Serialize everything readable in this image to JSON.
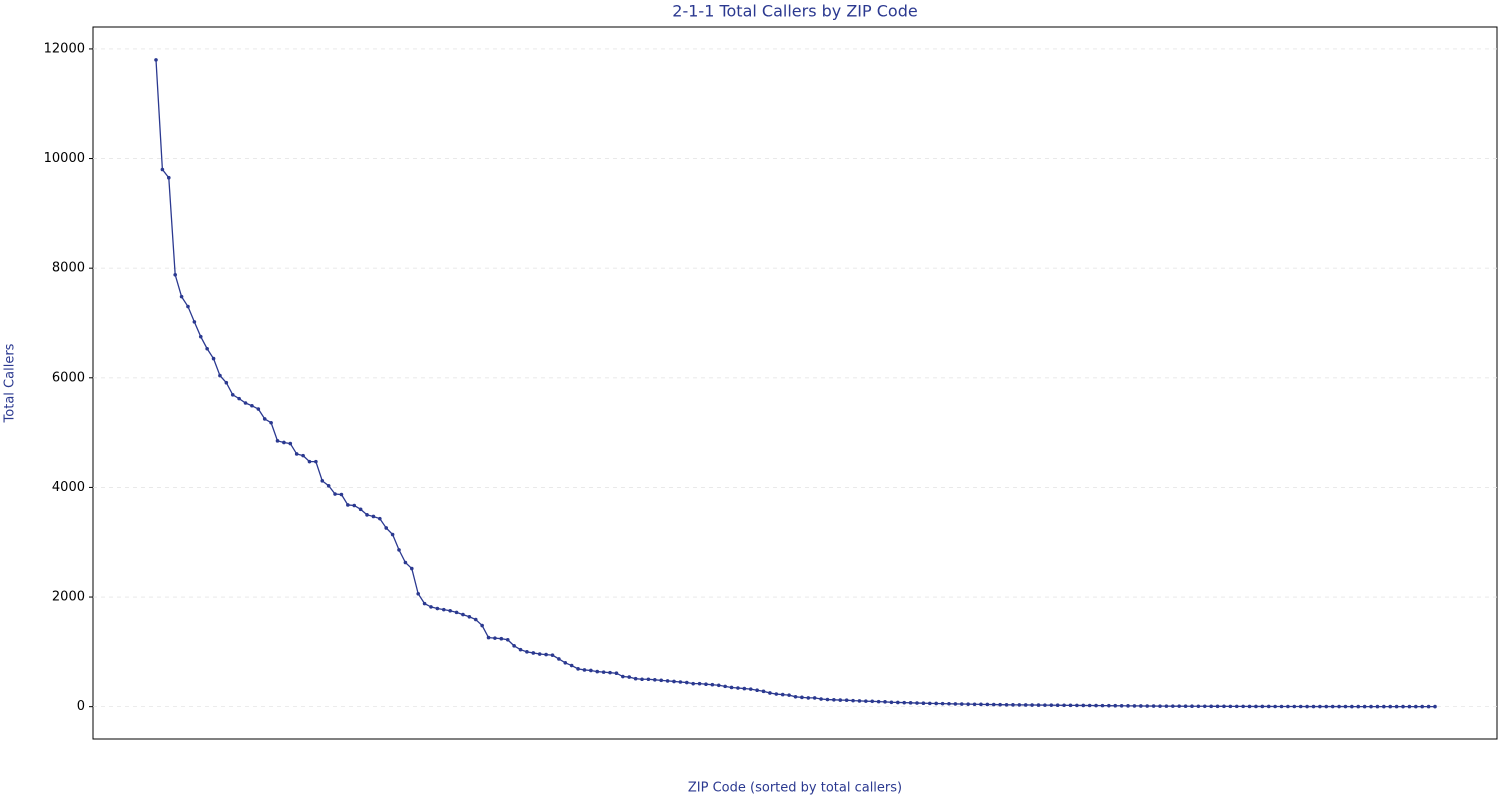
{
  "chart_data": {
    "type": "line",
    "title": "2-1-1 Total Callers by ZIP Code",
    "x_label": "ZIP Code (sorted by total callers)",
    "y_label": "Total Callers",
    "color": "#2b3990",
    "grid": true,
    "ylim": [
      -590,
      12400
    ],
    "yticks": [
      0,
      2000,
      4000,
      6000,
      8000,
      10000,
      12000
    ],
    "values": [
      11800,
      9800,
      9650,
      7880,
      7480,
      7300,
      7020,
      6750,
      6530,
      6350,
      6040,
      5910,
      5690,
      5620,
      5540,
      5490,
      5430,
      5250,
      5180,
      4850,
      4820,
      4800,
      4610,
      4580,
      4470,
      4470,
      4120,
      4030,
      3880,
      3870,
      3680,
      3670,
      3600,
      3500,
      3470,
      3430,
      3260,
      3140,
      2860,
      2630,
      2520,
      2060,
      1880,
      1820,
      1790,
      1770,
      1750,
      1720,
      1680,
      1640,
      1590,
      1480,
      1260,
      1250,
      1240,
      1220,
      1110,
      1040,
      1000,
      980,
      960,
      950,
      940,
      870,
      800,
      750,
      690,
      670,
      660,
      640,
      630,
      620,
      610,
      550,
      540,
      510,
      500,
      500,
      490,
      480,
      470,
      460,
      450,
      440,
      420,
      420,
      410,
      400,
      390,
      370,
      350,
      340,
      330,
      320,
      300,
      280,
      250,
      230,
      220,
      210,
      180,
      170,
      160,
      160,
      140,
      130,
      125,
      120,
      118,
      110,
      105,
      100,
      98,
      92,
      88,
      80,
      77,
      73,
      70,
      66,
      63,
      60,
      58,
      55,
      53,
      50,
      48,
      46,
      44,
      42,
      40,
      38,
      36,
      34,
      33,
      32,
      31,
      30,
      29,
      28,
      27,
      26,
      25,
      24,
      23,
      22,
      21,
      20,
      19,
      18,
      17,
      16,
      15,
      14,
      13,
      12,
      11,
      10,
      10,
      9,
      9,
      8,
      8,
      7,
      7,
      6,
      6,
      6,
      5,
      5,
      5,
      4,
      4,
      4,
      4,
      3,
      3,
      3,
      3,
      3,
      2,
      2,
      2,
      2,
      2,
      2,
      2,
      1,
      1,
      1,
      1,
      1,
      1,
      1,
      1,
      1,
      1,
      1,
      1,
      1,
      1
    ]
  }
}
